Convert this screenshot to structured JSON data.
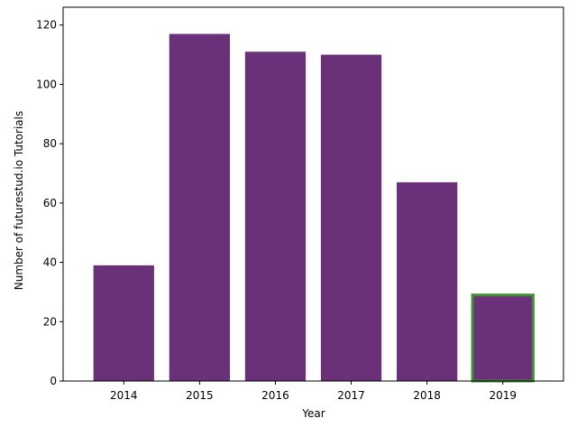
{
  "chart_data": {
    "type": "bar",
    "categories": [
      "2014",
      "2015",
      "2016",
      "2017",
      "2018",
      "2019"
    ],
    "values": [
      39,
      117,
      111,
      110,
      67,
      29
    ],
    "xlabel": "Year",
    "ylabel": "Number of futurestud.io Tutorials",
    "ylim": [
      0,
      120
    ],
    "yticks": [
      0,
      20,
      40,
      60,
      80,
      100,
      120
    ],
    "grid": false,
    "bar_color": "#6b3178",
    "highlight": {
      "category": "2019",
      "edge_color": "#3f8f34"
    }
  }
}
